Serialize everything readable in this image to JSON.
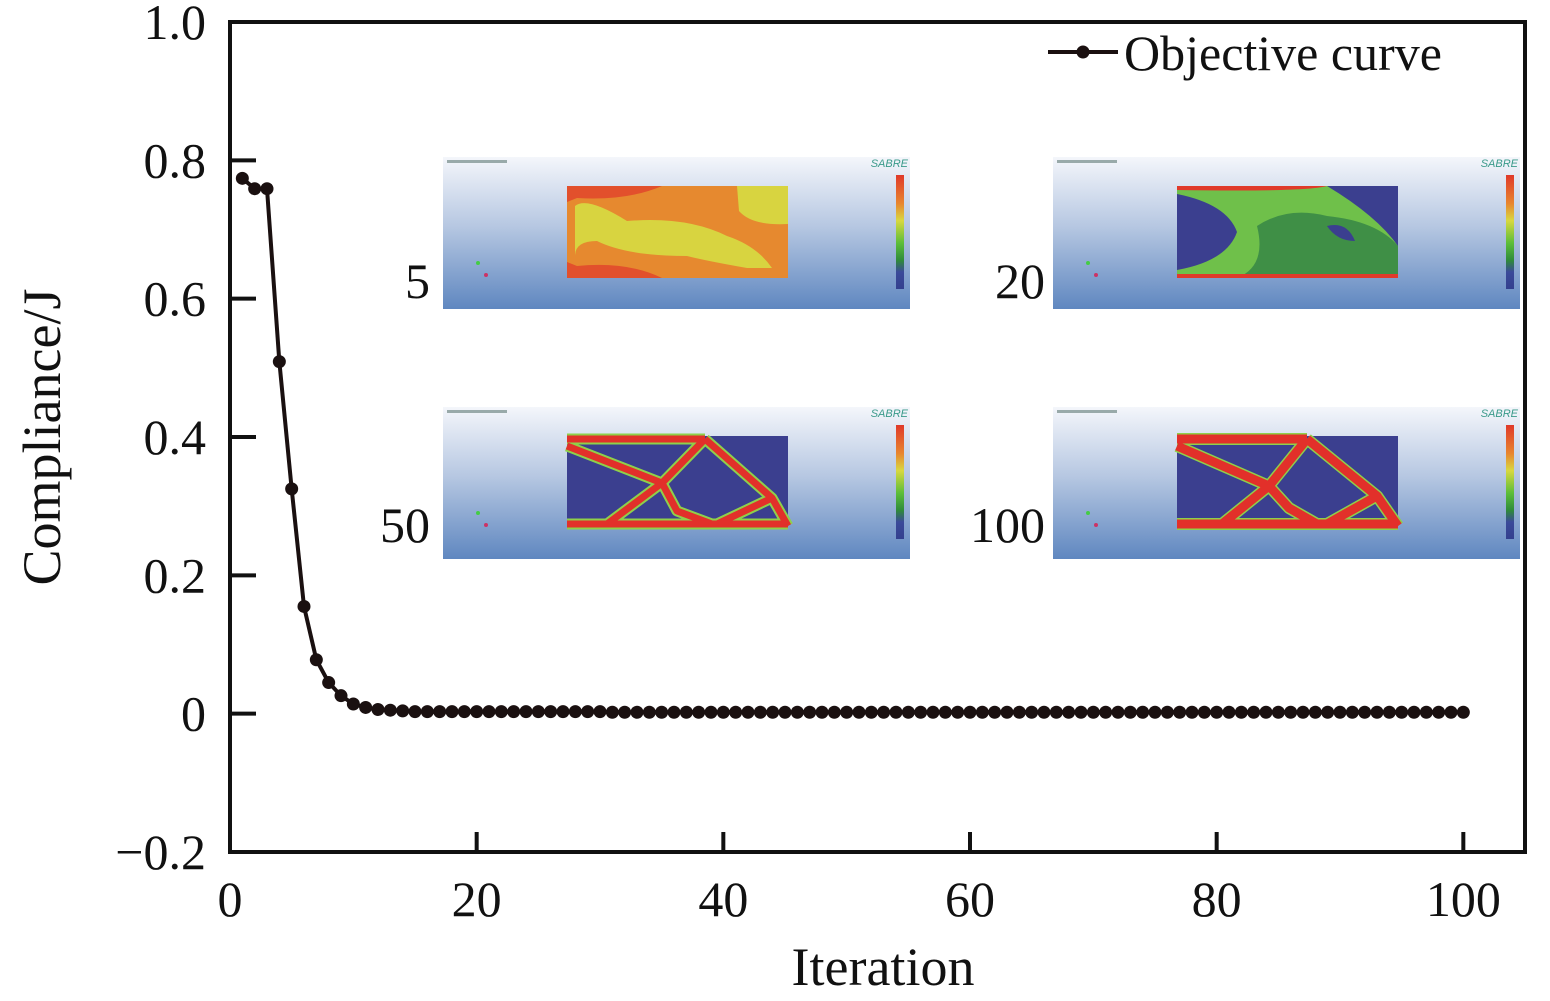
{
  "chart_data": {
    "type": "line",
    "title": "",
    "xlabel": "Iteration",
    "ylabel": "Compliance/J",
    "xlim": [
      0,
      105
    ],
    "ylim": [
      -0.2,
      1.0
    ],
    "xticks": [
      0,
      20,
      40,
      60,
      80,
      100
    ],
    "xtick_labels": [
      "0",
      "20",
      "40",
      "60",
      "80",
      "100"
    ],
    "yticks": [
      -0.2,
      0,
      0.2,
      0.4,
      0.6,
      0.8,
      1.0
    ],
    "ytick_labels": [
      "−0.2",
      "0",
      "0.2",
      "0.4",
      "0.6",
      "0.8",
      "1.0"
    ],
    "grid": false,
    "legend": {
      "position": "top-right",
      "entries": [
        "Objective curve"
      ]
    },
    "series": [
      {
        "name": "Objective curve",
        "color": "#1a1010",
        "x_start": 1,
        "x_step": 1,
        "values": [
          0.774,
          0.759,
          0.759,
          0.509,
          0.325,
          0.155,
          0.078,
          0.045,
          0.026,
          0.014,
          0.009,
          0.006,
          0.005,
          0.004,
          0.003,
          0.003,
          0.003,
          0.003,
          0.003,
          0.003,
          0.003,
          0.003,
          0.003,
          0.003,
          0.003,
          0.003,
          0.003,
          0.003,
          0.003,
          0.003,
          0.002,
          0.002,
          0.002,
          0.002,
          0.002,
          0.002,
          0.002,
          0.002,
          0.002,
          0.002,
          0.002,
          0.002,
          0.002,
          0.002,
          0.002,
          0.002,
          0.002,
          0.002,
          0.002,
          0.002,
          0.002,
          0.002,
          0.002,
          0.002,
          0.002,
          0.002,
          0.002,
          0.002,
          0.002,
          0.002,
          0.002,
          0.002,
          0.002,
          0.002,
          0.002,
          0.002,
          0.002,
          0.002,
          0.002,
          0.002,
          0.002,
          0.002,
          0.002,
          0.002,
          0.002,
          0.002,
          0.002,
          0.002,
          0.002,
          0.002,
          0.002,
          0.002,
          0.002,
          0.002,
          0.002,
          0.002,
          0.002,
          0.002,
          0.002,
          0.002,
          0.002,
          0.002,
          0.002,
          0.002,
          0.002,
          0.002,
          0.002,
          0.002,
          0.002,
          0.002
        ]
      }
    ],
    "annotations": [
      {
        "label": "5",
        "type": "topology-inset",
        "iteration": 5
      },
      {
        "label": "20",
        "type": "topology-inset",
        "iteration": 20
      },
      {
        "label": "50",
        "type": "topology-inset",
        "iteration": 50
      },
      {
        "label": "100",
        "type": "topology-inset",
        "iteration": 100
      }
    ],
    "inset_logo": "SABRE"
  }
}
